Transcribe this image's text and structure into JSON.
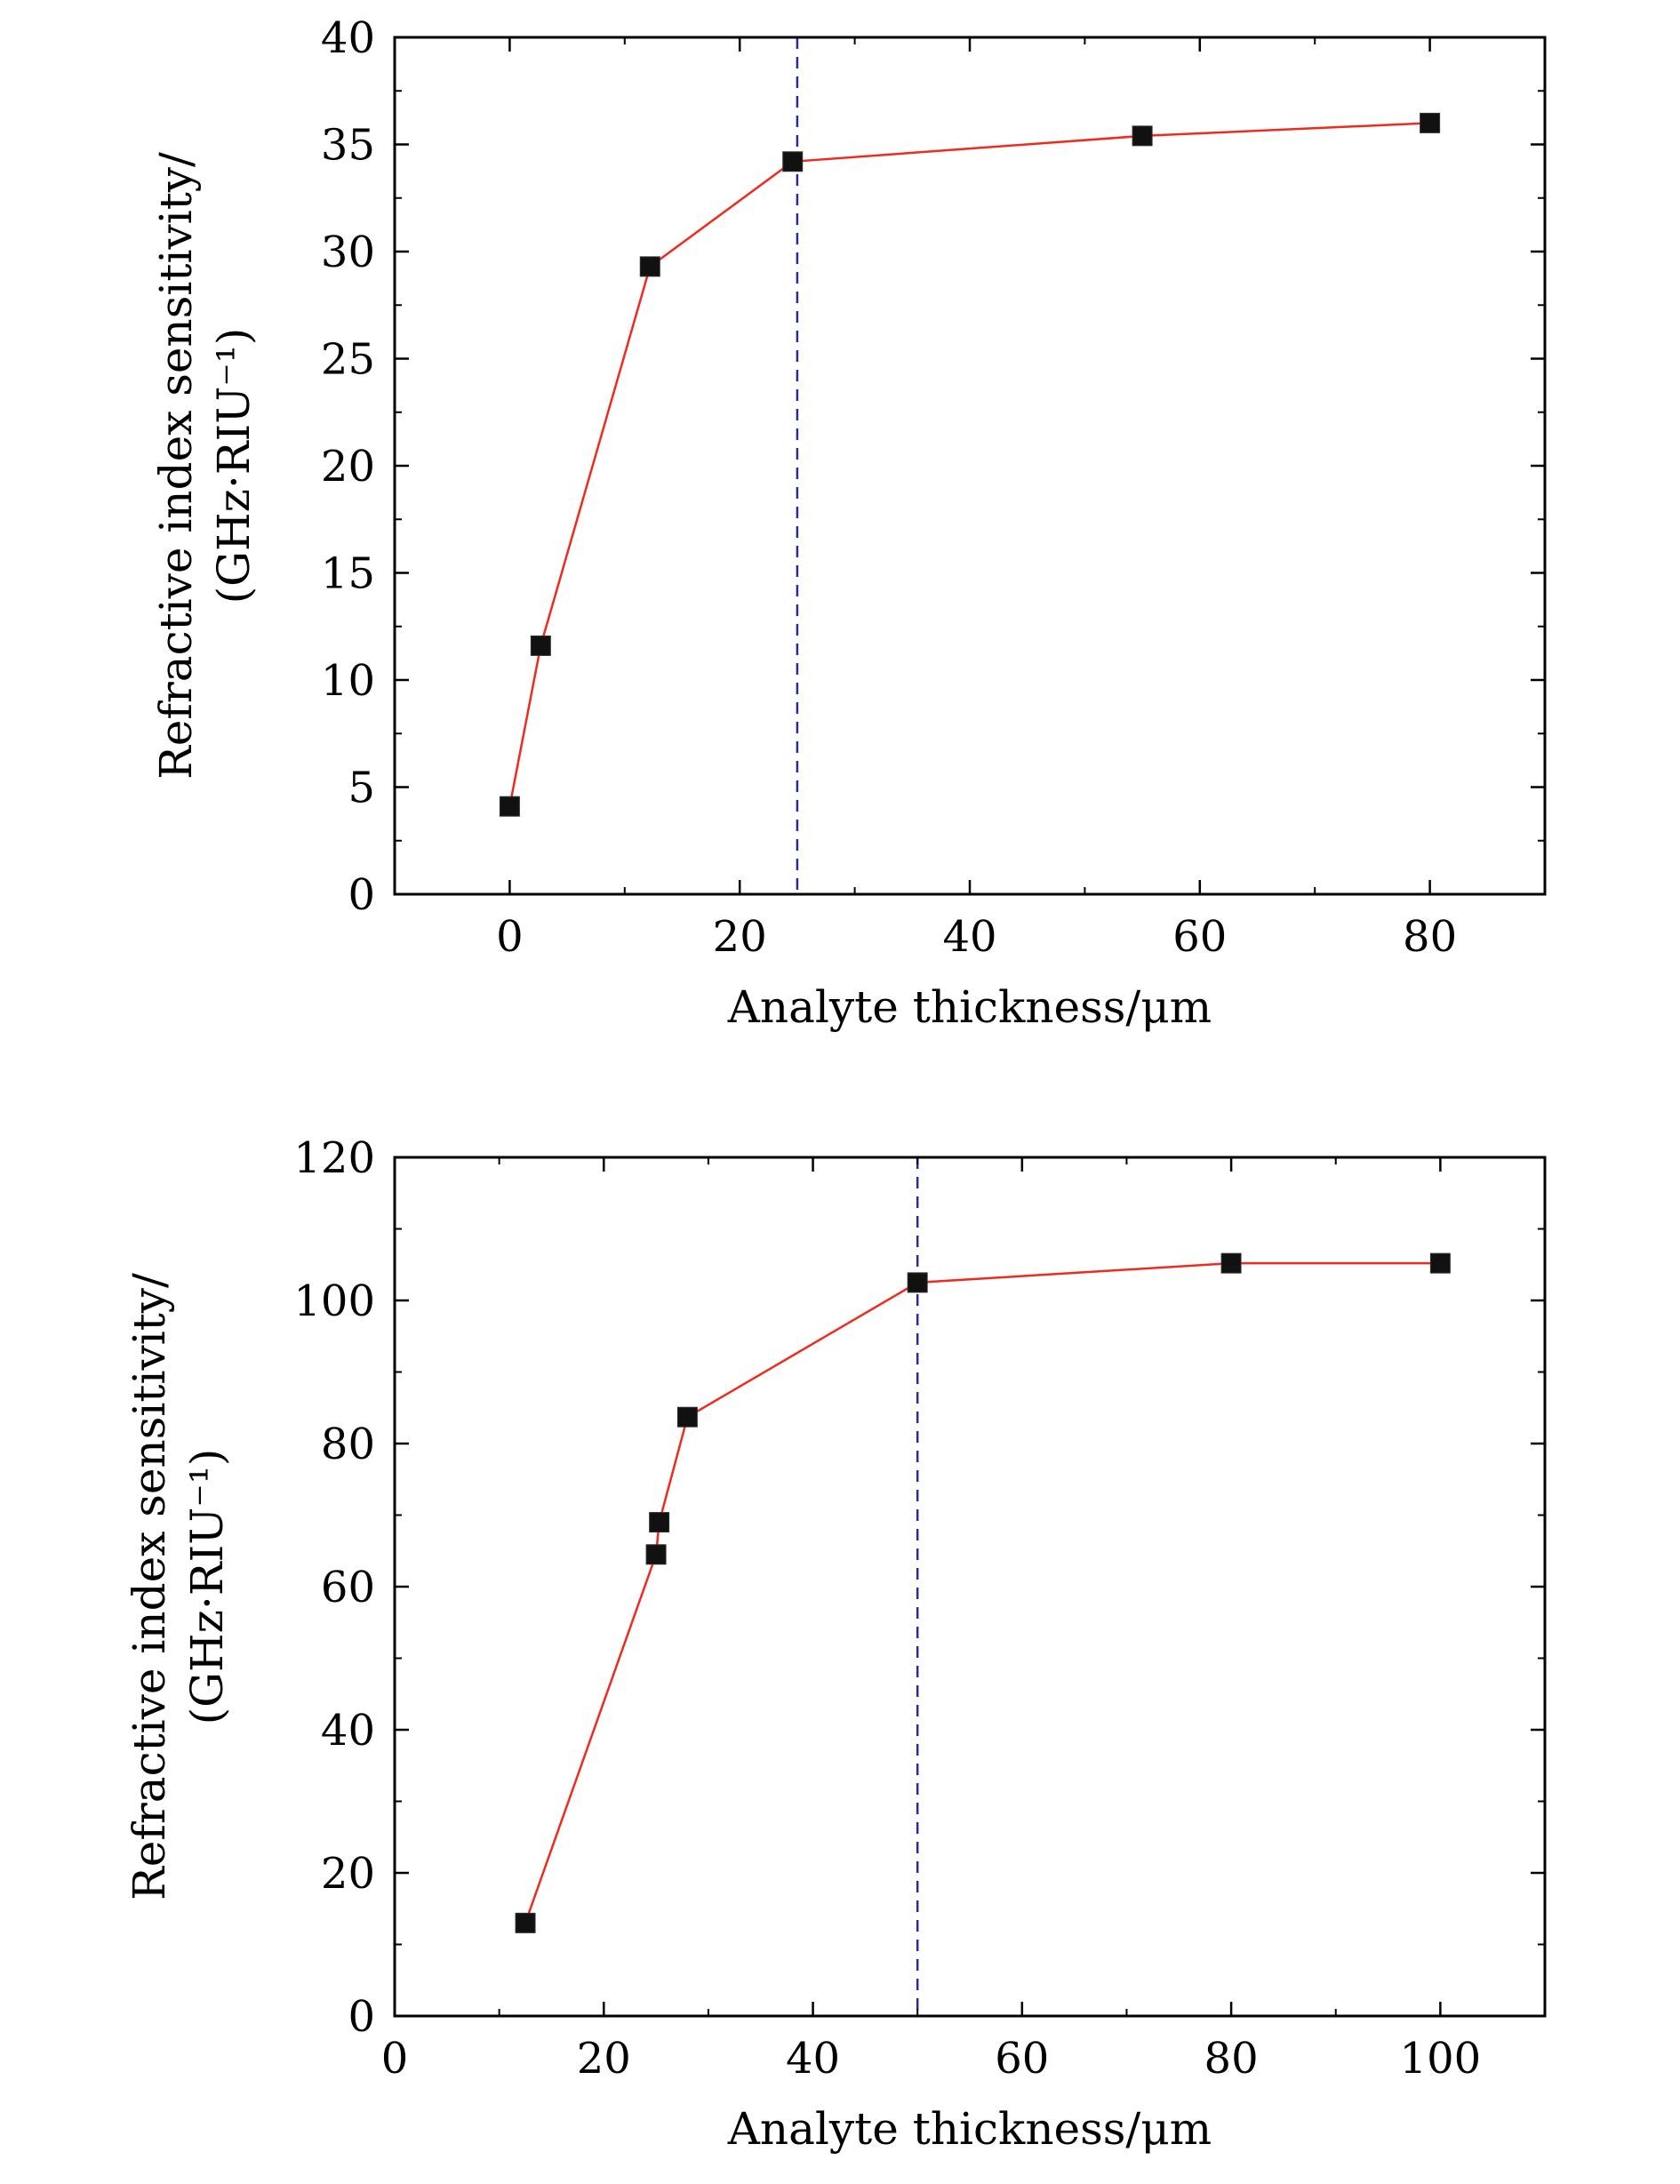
{
  "colors": {
    "line": "#ee2b1e",
    "marker": "#111111",
    "reference_line": "#2a2a9c",
    "axes": "#000000",
    "background": "#ffffff"
  },
  "chart_data": [
    {
      "type": "line",
      "title": "",
      "xlabel": "Analyte thickness/μm",
      "ylabel_line1": "Refractive index sensitivity/",
      "ylabel_line2": "(GHz·RIU⁻¹)",
      "xlim": [
        -10,
        90
      ],
      "ylim": [
        0,
        40
      ],
      "xticks": [
        0,
        20,
        40,
        60,
        80
      ],
      "yticks": [
        0,
        5,
        10,
        15,
        20,
        25,
        30,
        35,
        40
      ],
      "xtick_labels": [
        "0",
        "20",
        "40",
        "60",
        "80"
      ],
      "ytick_labels": [
        "0",
        "5",
        "10",
        "15",
        "20",
        "25",
        "30",
        "35",
        "40"
      ],
      "grid": false,
      "reference_line_x": 25,
      "series": [
        {
          "x": [
            0,
            2.7,
            12.2,
            24.6,
            55,
            80
          ],
          "y": [
            4.1,
            11.6,
            29.3,
            34.2,
            35.4,
            36.0
          ],
          "marker": "square"
        }
      ]
    },
    {
      "type": "line",
      "title": "",
      "xlabel": "Analyte thickness/μm",
      "ylabel_line1": "Refractive index sensitivity/",
      "ylabel_line2": "(GHz·RIU⁻¹)",
      "xlim": [
        0,
        110
      ],
      "ylim": [
        0,
        120
      ],
      "xticks": [
        0,
        20,
        40,
        60,
        80,
        100
      ],
      "yticks": [
        0,
        20,
        40,
        60,
        80,
        100,
        120
      ],
      "xtick_labels": [
        "0",
        "20",
        "40",
        "60",
        "80",
        "100"
      ],
      "ytick_labels": [
        "0",
        "20",
        "40",
        "60",
        "80",
        "100",
        "120"
      ],
      "grid": false,
      "reference_line_x": 50,
      "series": [
        {
          "x": [
            12.5,
            25,
            25.3,
            28,
            50,
            80,
            100
          ],
          "y": [
            13,
            64.5,
            69,
            83.7,
            102.5,
            105.2,
            105.2
          ],
          "marker": "square"
        }
      ]
    }
  ]
}
